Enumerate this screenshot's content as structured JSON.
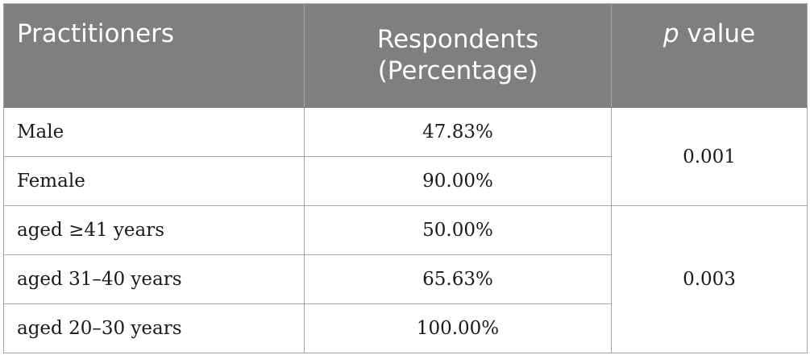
{
  "header": {
    "col1": "Practitioners",
    "col2_line1": "Respondents",
    "col2_line2": "(Percentage)",
    "col3_italic": "p",
    "col3_rest": " value"
  },
  "groups": [
    {
      "p_value": "0.001",
      "rows": [
        {
          "label": "Male",
          "value": "47.83%"
        },
        {
          "label": "Female",
          "value": "90.00%"
        }
      ]
    },
    {
      "p_value": "0.003",
      "rows": [
        {
          "label": "aged ≥41 years",
          "value": "50.00%"
        },
        {
          "label": "aged 31–40 years",
          "value": "65.63%"
        },
        {
          "label": "aged 20–30 years",
          "value": "100.00%"
        }
      ]
    }
  ]
}
